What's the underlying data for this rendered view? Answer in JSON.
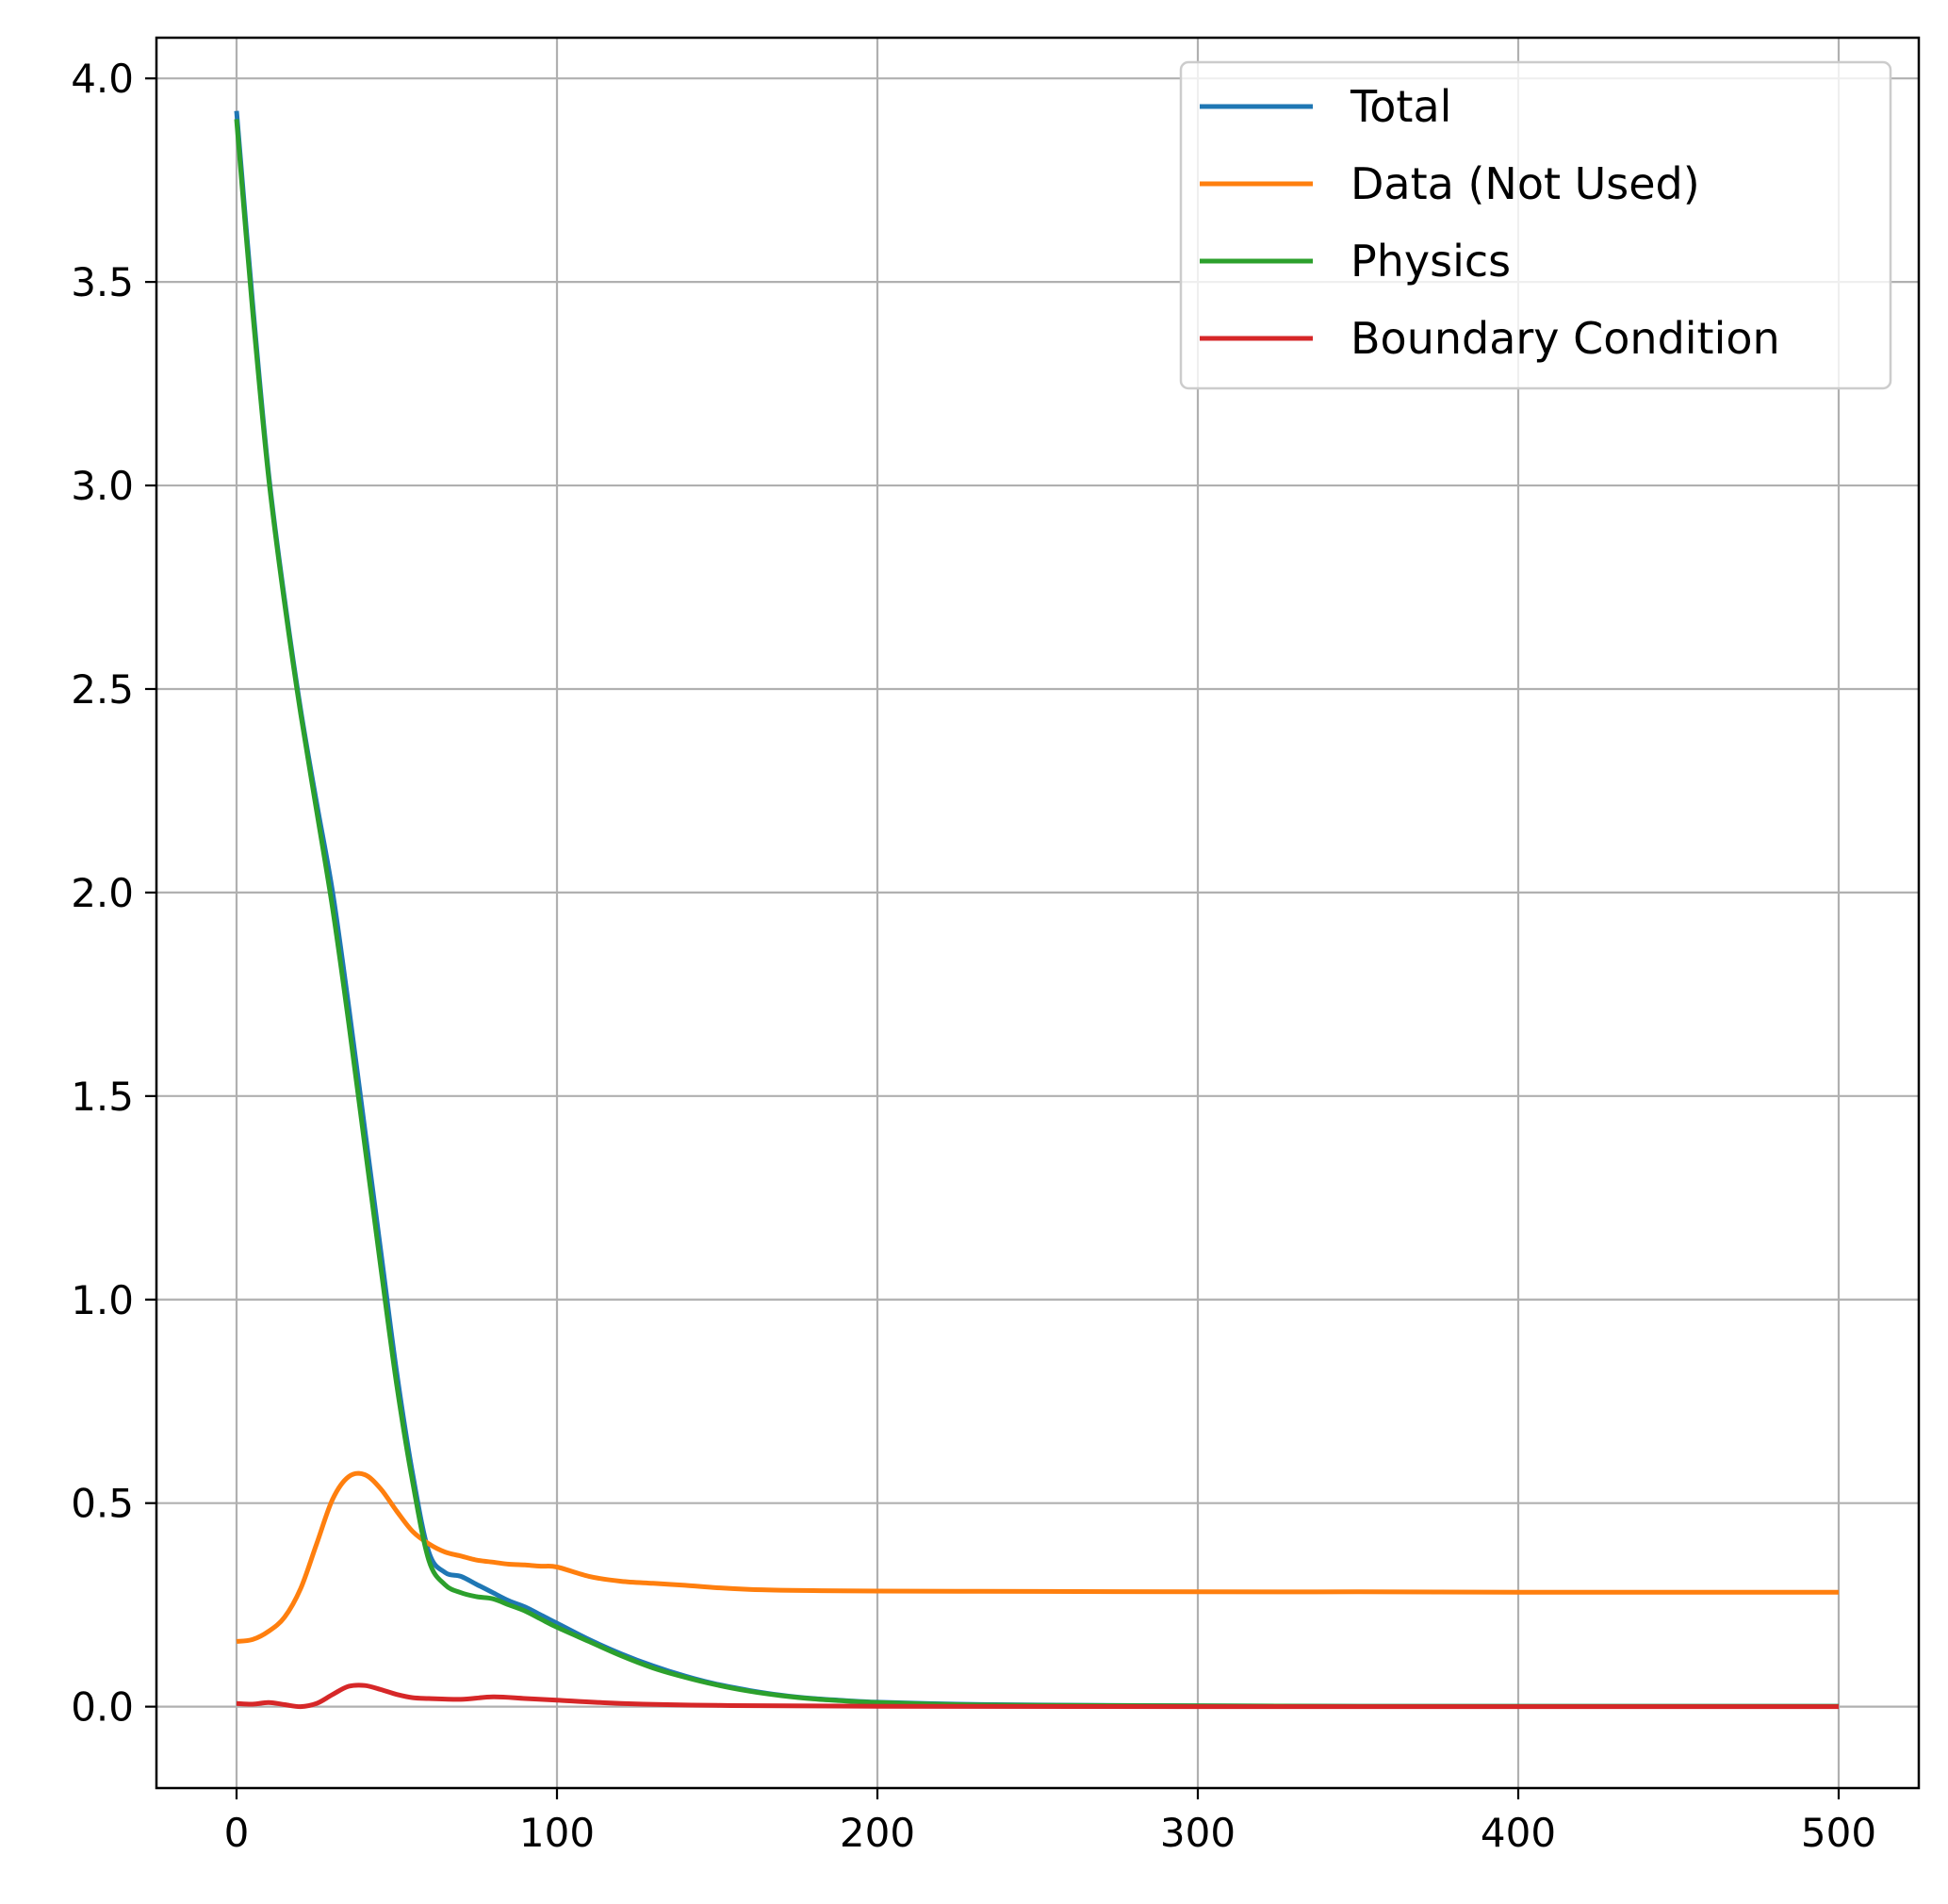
{
  "chart_data": {
    "type": "line",
    "title": "",
    "xlabel": "",
    "ylabel": "",
    "xlim": [
      -25,
      525
    ],
    "ylim": [
      -0.2,
      4.1
    ],
    "xticks": [
      0,
      100,
      200,
      300,
      400,
      500
    ],
    "xtick_labels": [
      "0",
      "100",
      "200",
      "300",
      "400",
      "500"
    ],
    "yticks": [
      0.0,
      0.5,
      1.0,
      1.5,
      2.0,
      2.5,
      3.0,
      3.5,
      4.0
    ],
    "ytick_labels": [
      "0.0",
      "0.5",
      "1.0",
      "1.5",
      "2.0",
      "2.5",
      "3.0",
      "3.5",
      "4.0"
    ],
    "grid": true,
    "legend_position": "top-right",
    "series": [
      {
        "name": "Total",
        "color": "#1f77b4",
        "x": [
          0,
          5,
          10,
          15,
          20,
          25,
          30,
          35,
          40,
          45,
          50,
          55,
          60,
          65,
          70,
          75,
          80,
          85,
          90,
          95,
          100,
          110,
          120,
          130,
          140,
          150,
          160,
          170,
          180,
          190,
          200,
          225,
          250,
          300,
          350,
          400,
          450,
          500
        ],
        "y": [
          3.92,
          3.45,
          3.03,
          2.72,
          2.45,
          2.22,
          2.0,
          1.72,
          1.42,
          1.12,
          0.82,
          0.57,
          0.38,
          0.33,
          0.32,
          0.3,
          0.28,
          0.26,
          0.245,
          0.225,
          0.205,
          0.165,
          0.13,
          0.1,
          0.075,
          0.055,
          0.04,
          0.028,
          0.02,
          0.015,
          0.011,
          0.006,
          0.004,
          0.002,
          0.001,
          0.001,
          0.001,
          0.001
        ]
      },
      {
        "name": "Data (Not Used)",
        "color": "#ff7f0e",
        "x": [
          0,
          5,
          10,
          15,
          20,
          25,
          30,
          35,
          40,
          45,
          50,
          55,
          60,
          65,
          70,
          75,
          80,
          85,
          90,
          95,
          100,
          110,
          120,
          130,
          140,
          150,
          160,
          170,
          180,
          200,
          250,
          300,
          350,
          400,
          450,
          500
        ],
        "y": [
          0.16,
          0.165,
          0.185,
          0.22,
          0.29,
          0.4,
          0.51,
          0.565,
          0.57,
          0.535,
          0.48,
          0.43,
          0.4,
          0.38,
          0.37,
          0.36,
          0.355,
          0.35,
          0.348,
          0.345,
          0.343,
          0.32,
          0.308,
          0.303,
          0.298,
          0.292,
          0.288,
          0.286,
          0.285,
          0.284,
          0.283,
          0.282,
          0.282,
          0.281,
          0.281,
          0.281
        ]
      },
      {
        "name": "Physics",
        "color": "#2ca02c",
        "x": [
          0,
          5,
          10,
          15,
          20,
          25,
          30,
          35,
          40,
          45,
          50,
          55,
          60,
          65,
          70,
          75,
          80,
          85,
          90,
          95,
          100,
          110,
          120,
          130,
          140,
          150,
          160,
          170,
          180,
          190,
          200,
          225,
          250,
          300,
          350,
          400,
          450,
          500
        ],
        "y": [
          3.9,
          3.43,
          3.02,
          2.71,
          2.44,
          2.2,
          1.96,
          1.68,
          1.38,
          1.08,
          0.79,
          0.55,
          0.36,
          0.3,
          0.28,
          0.27,
          0.265,
          0.25,
          0.235,
          0.215,
          0.195,
          0.16,
          0.125,
          0.095,
          0.072,
          0.053,
          0.038,
          0.027,
          0.019,
          0.014,
          0.01,
          0.005,
          0.003,
          0.002,
          0.001,
          0.001,
          0.001,
          0.001
        ]
      },
      {
        "name": "Boundary Condition",
        "color": "#d62728",
        "x": [
          0,
          5,
          10,
          15,
          20,
          25,
          30,
          35,
          40,
          45,
          50,
          55,
          60,
          70,
          80,
          90,
          100,
          120,
          150,
          200,
          300,
          400,
          500
        ],
        "y": [
          0.008,
          0.006,
          0.01,
          0.005,
          0.0,
          0.008,
          0.03,
          0.05,
          0.052,
          0.042,
          0.03,
          0.022,
          0.02,
          0.018,
          0.024,
          0.02,
          0.016,
          0.008,
          0.003,
          0.001,
          0.0,
          0.0,
          0.0
        ]
      }
    ]
  }
}
